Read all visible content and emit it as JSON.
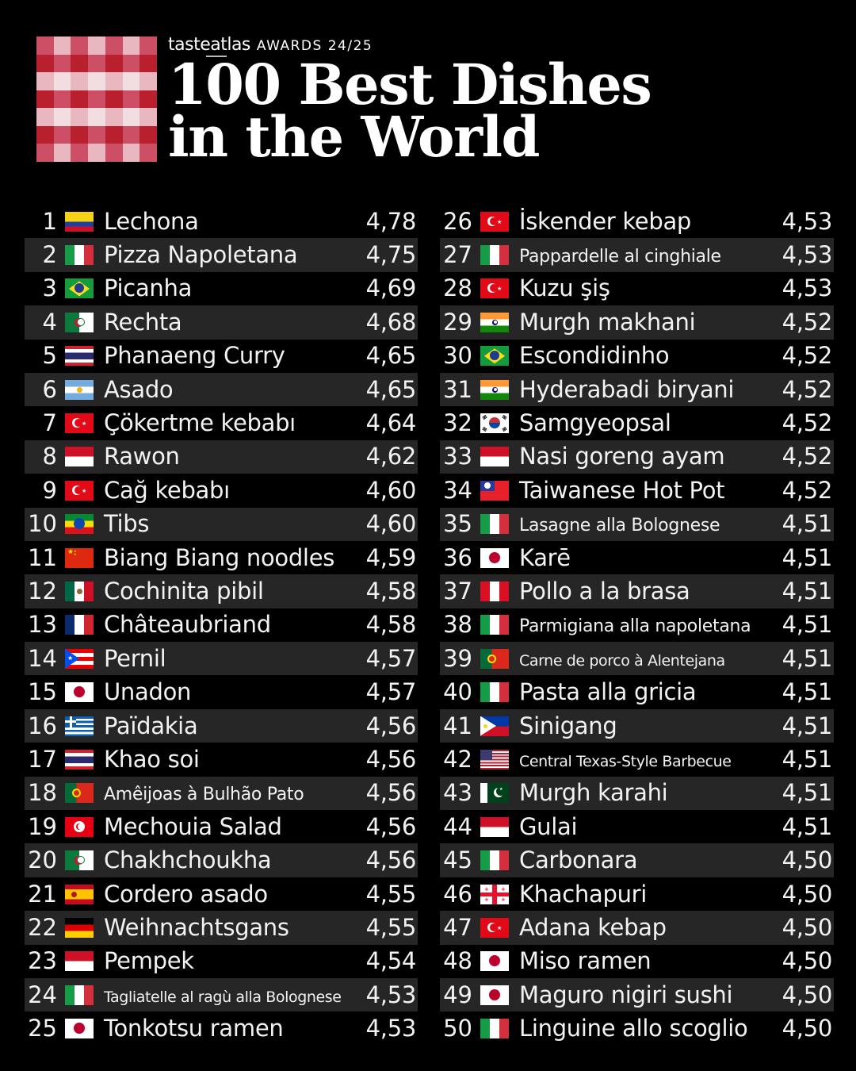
{
  "header": {
    "brand": "tasteatlas",
    "awards": "AWARDS 24/25",
    "title_line1": "100 Best Dishes",
    "title_line2": "in the World",
    "gingham_colors": {
      "dark": "#b8202e",
      "mid": "#cc4f66",
      "light": "#e8b7c0",
      "pale": "#f2dde1"
    }
  },
  "colors": {
    "background": "#000000",
    "row_alt": "#262626",
    "text": "#f2f2f2"
  },
  "rankings": {
    "left": [
      {
        "rank": "1",
        "flag": "colombia",
        "name": "Lechona",
        "score": "4,78"
      },
      {
        "rank": "2",
        "flag": "italy",
        "name": "Pizza Napoletana",
        "score": "4,75"
      },
      {
        "rank": "3",
        "flag": "brazil",
        "name": "Picanha",
        "score": "4,69"
      },
      {
        "rank": "4",
        "flag": "algeria",
        "name": "Rechta",
        "score": "4,68"
      },
      {
        "rank": "5",
        "flag": "thailand",
        "name": "Phanaeng Curry",
        "score": "4,65"
      },
      {
        "rank": "6",
        "flag": "argentina",
        "name": "Asado",
        "score": "4,65"
      },
      {
        "rank": "7",
        "flag": "turkey",
        "name": "Çökertme kebabı",
        "score": "4,64"
      },
      {
        "rank": "8",
        "flag": "indonesia",
        "name": "Rawon",
        "score": "4,62"
      },
      {
        "rank": "9",
        "flag": "turkey",
        "name": "Cağ kebabı",
        "score": "4,60"
      },
      {
        "rank": "10",
        "flag": "ethiopia",
        "name": "Tibs",
        "score": "4,60"
      },
      {
        "rank": "11",
        "flag": "china",
        "name": "Biang Biang noodles",
        "score": "4,59"
      },
      {
        "rank": "12",
        "flag": "mexico",
        "name": "Cochinita pibil",
        "score": "4,58"
      },
      {
        "rank": "13",
        "flag": "france",
        "name": "Châteaubriand",
        "score": "4,58"
      },
      {
        "rank": "14",
        "flag": "puerto-rico",
        "name": "Pernil",
        "score": "4,57"
      },
      {
        "rank": "15",
        "flag": "japan",
        "name": "Unadon",
        "score": "4,57"
      },
      {
        "rank": "16",
        "flag": "greece",
        "name": "Païdakia",
        "score": "4,56"
      },
      {
        "rank": "17",
        "flag": "thailand",
        "name": "Khao soi",
        "score": "4,56"
      },
      {
        "rank": "18",
        "flag": "portugal",
        "name": "Amêijoas à Bulhão Pato",
        "score": "4,56",
        "size": "small"
      },
      {
        "rank": "19",
        "flag": "tunisia",
        "name": "Mechouia Salad",
        "score": "4,56"
      },
      {
        "rank": "20",
        "flag": "algeria",
        "name": "Chakhchoukha",
        "score": "4,56"
      },
      {
        "rank": "21",
        "flag": "spain",
        "name": "Cordero asado",
        "score": "4,55"
      },
      {
        "rank": "22",
        "flag": "germany",
        "name": "Weihnachtsgans",
        "score": "4,55"
      },
      {
        "rank": "23",
        "flag": "indonesia",
        "name": "Pempek",
        "score": "4,54"
      },
      {
        "rank": "24",
        "flag": "italy",
        "name": "Tagliatelle al ragù alla Bolognese",
        "score": "4,53",
        "size": "xsmall"
      },
      {
        "rank": "25",
        "flag": "japan",
        "name": "Tonkotsu ramen",
        "score": "4,53"
      }
    ],
    "right": [
      {
        "rank": "26",
        "flag": "turkey",
        "name": "İskender kebap",
        "score": "4,53"
      },
      {
        "rank": "27",
        "flag": "italy",
        "name": "Pappardelle al cinghiale",
        "score": "4,53",
        "size": "small"
      },
      {
        "rank": "28",
        "flag": "turkey",
        "name": "Kuzu şiş",
        "score": "4,53"
      },
      {
        "rank": "29",
        "flag": "india",
        "name": "Murgh makhani",
        "score": "4,52"
      },
      {
        "rank": "30",
        "flag": "brazil",
        "name": "Escondidinho",
        "score": "4,52"
      },
      {
        "rank": "31",
        "flag": "india",
        "name": "Hyderabadi biryani",
        "score": "4,52"
      },
      {
        "rank": "32",
        "flag": "south-korea",
        "name": "Samgyeopsal",
        "score": "4,52"
      },
      {
        "rank": "33",
        "flag": "indonesia",
        "name": "Nasi goreng ayam",
        "score": "4,52"
      },
      {
        "rank": "34",
        "flag": "taiwan",
        "name": "Taiwanese Hot Pot",
        "score": "4,52"
      },
      {
        "rank": "35",
        "flag": "italy",
        "name": "Lasagne alla Bolognese",
        "score": "4,51",
        "size": "small"
      },
      {
        "rank": "36",
        "flag": "japan",
        "name": "Karē",
        "score": "4,51"
      },
      {
        "rank": "37",
        "flag": "peru",
        "name": "Pollo a la brasa",
        "score": "4,51"
      },
      {
        "rank": "38",
        "flag": "italy",
        "name": "Parmigiana alla napoletana",
        "score": "4,51",
        "size": "small"
      },
      {
        "rank": "39",
        "flag": "portugal",
        "name": "Carne de porco à Alentejana",
        "score": "4,51",
        "size": "xsmall"
      },
      {
        "rank": "40",
        "flag": "italy",
        "name": "Pasta alla gricia",
        "score": "4,51"
      },
      {
        "rank": "41",
        "flag": "philippines",
        "name": "Sinigang",
        "score": "4,51"
      },
      {
        "rank": "42",
        "flag": "usa",
        "name": "Central Texas-Style Barbecue",
        "score": "4,51",
        "size": "xsmall"
      },
      {
        "rank": "43",
        "flag": "pakistan",
        "name": "Murgh karahi",
        "score": "4,51"
      },
      {
        "rank": "44",
        "flag": "indonesia",
        "name": "Gulai",
        "score": "4,51"
      },
      {
        "rank": "45",
        "flag": "italy",
        "name": "Carbonara",
        "score": "4,50"
      },
      {
        "rank": "46",
        "flag": "georgia",
        "name": "Khachapuri",
        "score": "4,50"
      },
      {
        "rank": "47",
        "flag": "turkey",
        "name": "Adana kebap",
        "score": "4,50"
      },
      {
        "rank": "48",
        "flag": "japan",
        "name": "Miso ramen",
        "score": "4,50"
      },
      {
        "rank": "49",
        "flag": "japan",
        "name": "Maguro nigiri sushi",
        "score": "4,50"
      },
      {
        "rank": "50",
        "flag": "italy",
        "name": "Linguine allo scoglio",
        "score": "4,50"
      }
    ]
  }
}
